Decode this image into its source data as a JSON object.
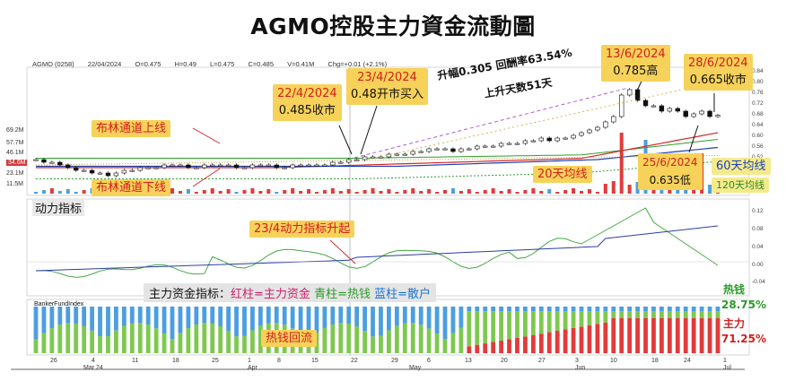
{
  "title": "AGMO控股主力資金流動圖",
  "header": {
    "symbol": "AGMO (0258)",
    "date": "22/04/2024",
    "open": "O=0.475",
    "high": "H=0.49",
    "low": "L=0.475",
    "close": "C=0.485",
    "volume": "V=0.41M",
    "change": "Chg=+0.01 (+2.1%)"
  },
  "left_axis_labels": [
    "69.2M",
    "57.7M",
    "46.1M",
    "34.6M",
    "23.1M",
    "11.5M"
  ],
  "right_axis_labels": [
    "0.84",
    "0.80",
    "0.76",
    "0.72",
    "0.68",
    "0.64",
    "0.60",
    "0.56",
    "0.52"
  ],
  "indicator_axis_labels": [
    "0.12",
    "0.08",
    "0.04",
    "0.00",
    "-0.04"
  ],
  "annotations": {
    "a1_date": "22/4/2024",
    "a1_text": "0.485收市",
    "a2_date": "23/4/2024",
    "a2_text": "0.48开市买入",
    "a3_date": "13/6/2024",
    "a3_text": "0.785高",
    "a4_date": "28/6/2024",
    "a4_text": "0.665收市",
    "a5_date": "25/6/2024",
    "a5_text": "0.635低",
    "gain_line1": "升幅0.305  回酬率63.54%",
    "gain_line2": "上升天数51天",
    "bb_upper": "布林通道上线",
    "bb_lower": "布林通道下线",
    "ma20": "20天均线",
    "ma60": "60天均线",
    "ma120": "120天均线",
    "momentum_title": "动力指标",
    "momentum_rise": "23/4动力指标升起",
    "fund_legend_prefix": "主力资金指标：",
    "fund_legend_red": "红柱=主力资金",
    "fund_legend_cyan": "青柱=热钱",
    "fund_legend_blue": "蓝柱=散户",
    "banker_label": "BankerFundIndex",
    "hot_money_return": "热钱回流",
    "hot_label": "热钱",
    "hot_pct": "28.75%",
    "main_label": "主力",
    "main_pct": "71.25%"
  },
  "x_axis": {
    "days": [
      "26",
      "4",
      "11",
      "18",
      "25",
      "1",
      "8",
      "15",
      "22",
      "29",
      "6",
      "13",
      "20",
      "27",
      "3",
      "10",
      "18",
      "24",
      "1"
    ],
    "months": [
      "Mar 24",
      "Apr",
      "May",
      "Jun",
      "Jul"
    ]
  },
  "colors": {
    "up": "#ffffff",
    "down": "#111111",
    "bb": "#2f9e2f",
    "ma20": "#d22a2a",
    "ma60": "#2040b0",
    "ma120": "#c9a431",
    "main_fund": "#e23b3b",
    "hot_money": "#7ec850",
    "retail": "#4c9ee0",
    "callout_bg": "#f6d25a",
    "highlight_red": "#d23a3a"
  },
  "chart_data": {
    "type": "candlestick",
    "period": "Mar 2024 - Jul 2024 (daily)",
    "price_key_points": [
      {
        "date": "22/4/2024",
        "close": 0.485
      },
      {
        "date": "23/4/2024",
        "open": 0.48
      },
      {
        "date": "13/6/2024",
        "high": 0.785
      },
      {
        "date": "25/6/2024",
        "low": 0.635
      },
      {
        "date": "28/6/2024",
        "close": 0.665
      }
    ],
    "gain": 0.305,
    "return_pct": 63.54,
    "rise_days": 51,
    "close_series": [
      0.5,
      0.49,
      0.49,
      0.48,
      0.47,
      0.46,
      0.46,
      0.45,
      0.45,
      0.44,
      0.45,
      0.46,
      0.46,
      0.47,
      0.47,
      0.47,
      0.48,
      0.48,
      0.48,
      0.47,
      0.47,
      0.48,
      0.48,
      0.48,
      0.48,
      0.47,
      0.47,
      0.48,
      0.48,
      0.48,
      0.47,
      0.47,
      0.48,
      0.48,
      0.48,
      0.48,
      0.48,
      0.49,
      0.49,
      0.5,
      0.5,
      0.51,
      0.51,
      0.51,
      0.52,
      0.52,
      0.52,
      0.53,
      0.53,
      0.54,
      0.54,
      0.54,
      0.53,
      0.54,
      0.54,
      0.55,
      0.55,
      0.55,
      0.56,
      0.56,
      0.56,
      0.57,
      0.57,
      0.58,
      0.57,
      0.58,
      0.58,
      0.59,
      0.6,
      0.61,
      0.62,
      0.64,
      0.66,
      0.74,
      0.76,
      0.72,
      0.7,
      0.7,
      0.68,
      0.69,
      0.68,
      0.66,
      0.67,
      0.68,
      0.66,
      0.665
    ],
    "series": [
      {
        "name": "布林通道上线"
      },
      {
        "name": "布林通道下线"
      },
      {
        "name": "20天均线"
      },
      {
        "name": "60天均线"
      },
      {
        "name": "120天均线"
      }
    ],
    "fund_split_latest": {
      "热钱": 28.75,
      "主力": 71.25
    },
    "momentum_range": [
      -0.04,
      0.12
    ]
  }
}
